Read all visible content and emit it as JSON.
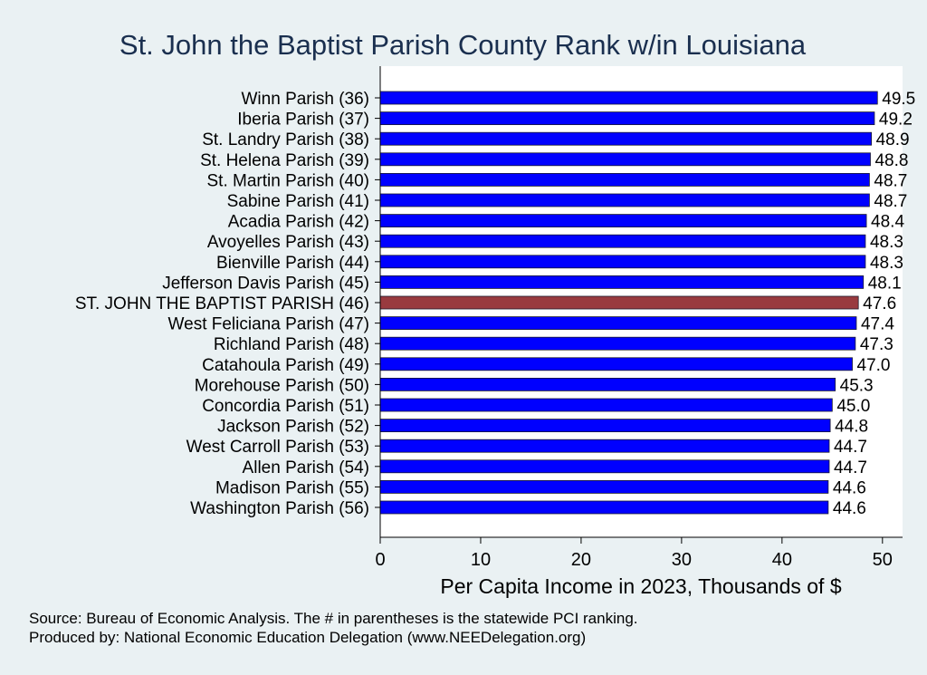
{
  "chart_data": {
    "type": "bar",
    "orientation": "horizontal",
    "title": "St. John the Baptist Parish County Rank w/in Louisiana",
    "xlabel": "Per Capita Income in 2023, Thousands of $",
    "ylabel": "",
    "xlim": [
      0,
      52
    ],
    "xticks": [
      "0",
      "10",
      "20",
      "30",
      "40",
      "50"
    ],
    "grid": false,
    "categories": [
      "Winn Parish (36)",
      "Iberia Parish (37)",
      "St. Landry Parish (38)",
      "St. Helena Parish (39)",
      "St. Martin Parish (40)",
      "Sabine Parish (41)",
      "Acadia Parish (42)",
      "Avoyelles Parish (43)",
      "Bienville Parish (44)",
      "Jefferson Davis Parish (45)",
      "ST. JOHN THE BAPTIST PARISH (46)",
      "West Feliciana Parish (47)",
      "Richland Parish (48)",
      "Catahoula Parish (49)",
      "Morehouse Parish (50)",
      "Concordia Parish (51)",
      "Jackson Parish (52)",
      "West Carroll Parish (53)",
      "Allen Parish (54)",
      "Madison Parish (55)",
      "Washington Parish (56)"
    ],
    "values": [
      49.5,
      49.2,
      48.9,
      48.8,
      48.7,
      48.7,
      48.4,
      48.3,
      48.3,
      48.1,
      47.6,
      47.4,
      47.3,
      47.0,
      45.3,
      45.0,
      44.8,
      44.7,
      44.7,
      44.6,
      44.6
    ],
    "value_labels": [
      "49.5",
      "49.2",
      "48.9",
      "48.8",
      "48.7",
      "48.7",
      "48.4",
      "48.3",
      "48.3",
      "48.1",
      "47.6",
      "47.4",
      "47.3",
      "47.0",
      "45.3",
      "45.0",
      "44.8",
      "44.7",
      "44.7",
      "44.6",
      "44.6"
    ],
    "highlight_index": 10,
    "colors": {
      "bar": "#0000ff",
      "highlight": "#993a3f",
      "title": "#1a2f4f",
      "background": "#eaf1f3"
    }
  },
  "footer": {
    "source": "Source: Bureau of Economic Analysis. The # in parentheses is the statewide PCI ranking.",
    "producer": "Produced by: National Economic Education Delegation (www.NEEDelegation.org)"
  }
}
